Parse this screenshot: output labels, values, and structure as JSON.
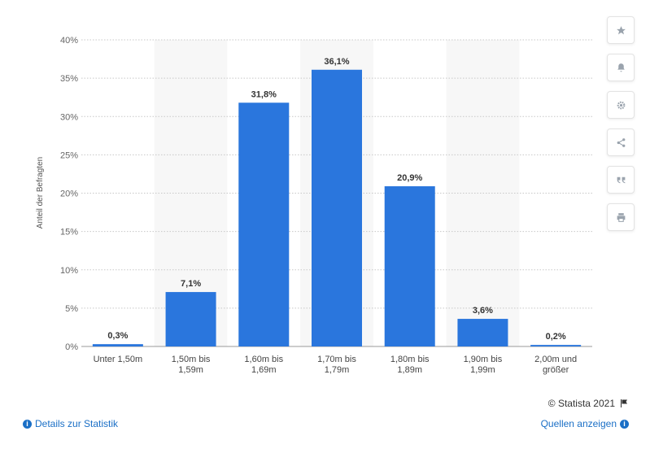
{
  "chart_data": {
    "type": "bar",
    "categories": [
      "Unter 1,50m",
      "1,50m bis 1,59m",
      "1,60m bis 1,69m",
      "1,70m bis 1,79m",
      "1,80m bis 1,89m",
      "1,90m bis 1,99m",
      "2,00m und größer"
    ],
    "category_lines": [
      [
        "Unter 1,50m"
      ],
      [
        "1,50m bis",
        "1,59m"
      ],
      [
        "1,60m bis",
        "1,69m"
      ],
      [
        "1,70m bis",
        "1,79m"
      ],
      [
        "1,80m bis",
        "1,89m"
      ],
      [
        "1,90m bis",
        "1,99m"
      ],
      [
        "2,00m und",
        "größer"
      ]
    ],
    "values": [
      0.3,
      7.1,
      31.8,
      36.1,
      20.9,
      3.6,
      0.2
    ],
    "value_labels": [
      "0,3%",
      "7,1%",
      "31,8%",
      "36,1%",
      "20,9%",
      "3,6%",
      "0,2%"
    ],
    "ylabel": "Anteil der Befragten",
    "ylim": [
      0,
      40
    ],
    "yticks": [
      0,
      5,
      10,
      15,
      20,
      25,
      30,
      35,
      40
    ],
    "ytick_labels": [
      "0%",
      "5%",
      "10%",
      "15%",
      "20%",
      "25%",
      "30%",
      "35%",
      "40%"
    ],
    "grid": true,
    "bar_color": "#2a76dd",
    "band_color": "#f7f7f7"
  },
  "toolbar": {
    "icons": [
      "star-icon",
      "bell-icon",
      "gear-icon",
      "share-icon",
      "quote-icon",
      "print-icon"
    ]
  },
  "footer": {
    "credit": "© Statista 2021",
    "details_link": "Details zur Statistik",
    "sources_link": "Quellen anzeigen"
  }
}
